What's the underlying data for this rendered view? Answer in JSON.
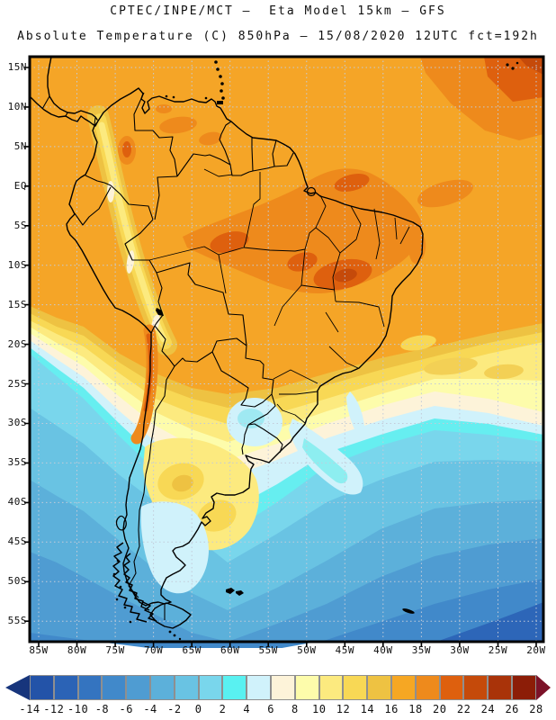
{
  "header": {
    "line1": "CPTEC/INPE/MCT –  Eta Model 15km – GFS",
    "line2": "Absolute Temperature (C) 850hPa – 15/08/2020 12UTC fct=192h"
  },
  "axes": {
    "lat": [
      "15N",
      "10N",
      "5N",
      "EQ",
      "5S",
      "10S",
      "15S",
      "20S",
      "25S",
      "30S",
      "35S",
      "40S",
      "45S",
      "50S",
      "55S"
    ],
    "lon": [
      "85W",
      "80W",
      "75W",
      "70W",
      "65W",
      "60W",
      "55W",
      "50W",
      "45W",
      "40W",
      "35W",
      "30W",
      "25W",
      "20W"
    ]
  },
  "colorbar": {
    "labels": [
      "-14",
      "-12",
      "-10",
      "-8",
      "-6",
      "-4",
      "-2",
      "0",
      "2",
      "4",
      "6",
      "8",
      "10",
      "12",
      "14",
      "16",
      "18",
      "20",
      "22",
      "24",
      "26",
      "28"
    ],
    "cells": [
      "#2353a8",
      "#2b63b6",
      "#3474c0",
      "#4189ca",
      "#4f9cd2",
      "#5cb0da",
      "#69c3e3",
      "#79d6ec",
      "#59f1f1",
      "#d0f2fb",
      "#fdf3d9",
      "#fdfcab",
      "#fcea7f",
      "#f8d855",
      "#eec242",
      "#f6a723",
      "#ee8a1c",
      "#de600e",
      "#c54a0a",
      "#a93309",
      "#8c1d07"
    ],
    "left_arrow": "#17357c",
    "right_arrow": "#7c1228"
  },
  "chart_data": {
    "type": "heatmap",
    "title": "CPTEC/INPE/MCT – Eta Model 15km – GFS",
    "subtitle": "Absolute Temperature (C) 850hPa – 15/08/2020 12UTC fct=192h",
    "variable": "absolute temperature",
    "units": "C",
    "level": "850hPa",
    "valid_time": "15/08/2020 12UTC",
    "forecast": "fct=192h",
    "x_axis": {
      "label": "longitude",
      "ticks": [
        "85W",
        "80W",
        "75W",
        "70W",
        "65W",
        "60W",
        "55W",
        "50W",
        "45W",
        "40W",
        "35W",
        "30W",
        "25W",
        "20W"
      ]
    },
    "y_axis": {
      "label": "latitude",
      "ticks": [
        "15N",
        "10N",
        "5N",
        "EQ",
        "5S",
        "10S",
        "15S",
        "20S",
        "25S",
        "30S",
        "35S",
        "40S",
        "45S",
        "50S",
        "55S"
      ]
    },
    "contour_levels_c": [
      -14,
      -12,
      -10,
      -8,
      -6,
      -4,
      -2,
      0,
      2,
      4,
      6,
      8,
      10,
      12,
      14,
      16,
      18,
      20,
      22,
      24,
      26,
      28
    ],
    "palette": [
      "#2353a8",
      "#2b63b6",
      "#3474c0",
      "#4189ca",
      "#4f9cd2",
      "#5cb0da",
      "#69c3e3",
      "#79d6ec",
      "#59f1f1",
      "#d0f2fb",
      "#fdf3d9",
      "#fdfcab",
      "#fcea7f",
      "#f8d855",
      "#eec242",
      "#f6a723",
      "#ee8a1c",
      "#de600e",
      "#c54a0a",
      "#a93309",
      "#8c1d07"
    ],
    "grid": true,
    "legend_position": "bottom",
    "field_samples": [
      {
        "lat": "10N",
        "lon": "70W",
        "temp_c": 17
      },
      {
        "lat": "5N",
        "lon": "60W",
        "temp_c": 17
      },
      {
        "lat": "EQ",
        "lon": "50W",
        "temp_c": 19
      },
      {
        "lat": "2N",
        "lon": "25W",
        "temp_c": 21
      },
      {
        "lat": "5S",
        "lon": "45W",
        "temp_c": 21
      },
      {
        "lat": "10S",
        "lon": "47W",
        "temp_c": 21
      },
      {
        "lat": "15S",
        "lon": "60W",
        "temp_c": 17
      },
      {
        "lat": "20S",
        "lon": "70W",
        "temp_c": 19
      },
      {
        "lat": "20S",
        "lon": "58W",
        "temp_c": 11
      },
      {
        "lat": "23S",
        "lon": "58W",
        "temp_c": 5
      },
      {
        "lat": "25S",
        "lon": "30W",
        "temp_c": 13
      },
      {
        "lat": "28S",
        "lon": "65W",
        "temp_c": 11
      },
      {
        "lat": "32S",
        "lon": "61W",
        "temp_c": 7
      },
      {
        "lat": "35S",
        "lon": "56W",
        "temp_c": 7
      },
      {
        "lat": "35S",
        "lon": "40W",
        "temp_c": 1
      },
      {
        "lat": "40S",
        "lon": "63W",
        "temp_c": 9
      },
      {
        "lat": "45S",
        "lon": "70W",
        "temp_c": 5
      },
      {
        "lat": "25S",
        "lon": "82W",
        "temp_c": 3
      },
      {
        "lat": "50S",
        "lon": "30W",
        "temp_c": -3
      },
      {
        "lat": "55S",
        "lon": "25W",
        "temp_c": -9
      }
    ]
  }
}
